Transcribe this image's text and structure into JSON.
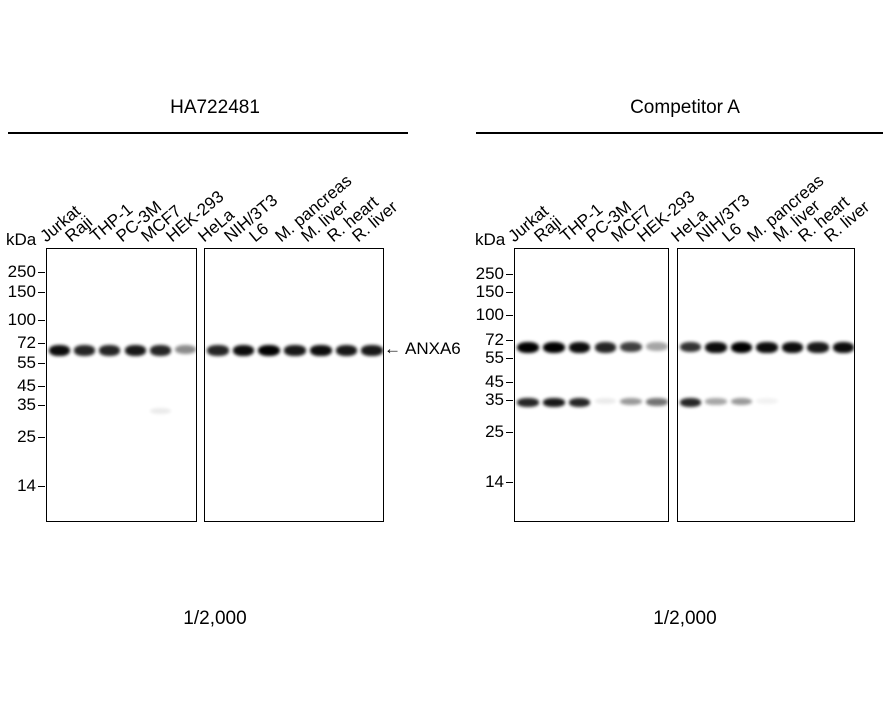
{
  "panels": [
    {
      "title": "HA722481",
      "dilution": "1/2,000",
      "markers": [
        "250",
        "150",
        "100",
        "72",
        "55",
        "45",
        "35",
        "25",
        "14"
      ],
      "bands_72kDa": [
        0.95,
        0.85,
        0.85,
        0.9,
        0.85,
        0.45,
        0.85,
        0.95,
        1.0,
        0.9,
        0.95,
        0.9,
        0.9
      ],
      "bands_35kDa": [
        0,
        0,
        0,
        0,
        0.08,
        0,
        0,
        0,
        0,
        0,
        0,
        0,
        0
      ]
    },
    {
      "title": "Competitor A",
      "dilution": "1/2,000",
      "markers": [
        "250",
        "150",
        "100",
        "72",
        "55",
        "45",
        "35",
        "25",
        "14"
      ],
      "bands_72kDa": [
        1.0,
        1.0,
        0.95,
        0.85,
        0.75,
        0.35,
        0.8,
        0.95,
        1.0,
        0.95,
        0.95,
        0.9,
        0.95
      ],
      "bands_35kDa": [
        0.85,
        0.9,
        0.85,
        0.08,
        0.4,
        0.55,
        0.85,
        0.35,
        0.4,
        0.05,
        0,
        0,
        0
      ]
    }
  ],
  "unit": "kDa",
  "lanes_group1": [
    "Jurkat",
    "Raji",
    "THP-1",
    "PC-3M",
    "MCF7",
    "HEK-293"
  ],
  "lanes_group2": [
    "HeLa",
    "NIH/3T3",
    "L6",
    "M. pancreas",
    "M. liver",
    "R. heart",
    "R. liver"
  ],
  "target": "ANXA6",
  "target_arrow": "←"
}
